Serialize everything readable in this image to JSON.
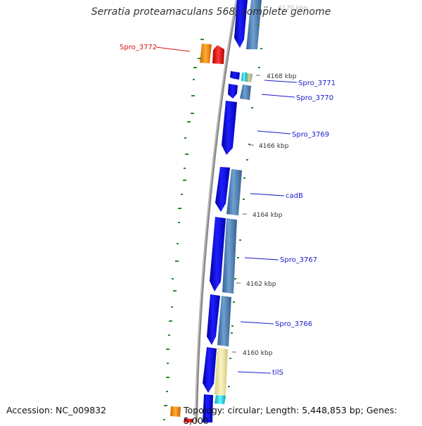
{
  "title": "Serratia proteamaculans 568, complete genome",
  "accession_label": "Accession: NC_009832",
  "topology_label": "Topology: circular; Length: 5,448,853 bp; Genes: 5,000",
  "colors": {
    "backbone": "#8a8a8a",
    "cds_forward": "#0a0ae6",
    "cds_reverse": "#4a7fb5",
    "gene_other_strand": "#ff9500",
    "gene_highlight": "#ff1a1a",
    "trna": "#f0e6a0",
    "rrna": "#17e0f0",
    "gc_ticks": "#2a8a2a",
    "label_blue": "#1a1acc",
    "label_red": "#dd1111"
  },
  "ruler_ticks": [
    {
      "kbp": 4170,
      "label": "4170 kbp"
    },
    {
      "kbp": 4168,
      "label": "4168 kbp"
    },
    {
      "kbp": 4166,
      "label": "4166 kbp"
    },
    {
      "kbp": 4164,
      "label": "4164 kbp"
    },
    {
      "kbp": 4162,
      "label": "4162 kbp"
    },
    {
      "kbp": 4160,
      "label": "4160 kbp"
    }
  ],
  "gene_labels": [
    {
      "name": "Spro_3772",
      "side": "left",
      "highlight": true
    },
    {
      "name": "Spro_3771",
      "side": "right",
      "highlight": false
    },
    {
      "name": "Spro_3770",
      "side": "right",
      "highlight": false
    },
    {
      "name": "Spro_3769",
      "side": "right",
      "highlight": false
    },
    {
      "name": "cadB",
      "side": "right",
      "highlight": false
    },
    {
      "name": "Spro_3767",
      "side": "right",
      "highlight": false
    },
    {
      "name": "Spro_3766",
      "side": "right",
      "highlight": false
    },
    {
      "name": "tilS",
      "side": "right",
      "highlight": false
    }
  ]
}
